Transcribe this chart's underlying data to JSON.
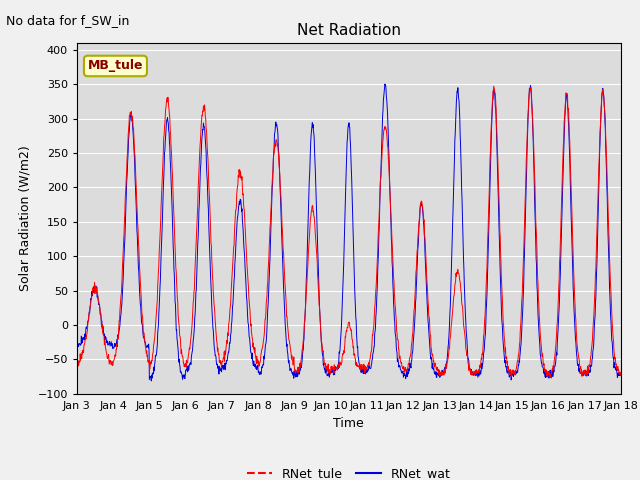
{
  "title": "Net Radiation",
  "xlabel": "Time",
  "ylabel": "Solar Radiation (W/m2)",
  "ylim": [
    -100,
    410
  ],
  "yticks": [
    -100,
    -50,
    0,
    50,
    100,
    150,
    200,
    250,
    300,
    350,
    400
  ],
  "annotation_text": "No data for f_SW_in",
  "legend_label1": "RNet_tule",
  "legend_label2": "RNet_wat",
  "line_color1": "#ff0000",
  "line_color2": "#0000dd",
  "bg_color": "#dcdcdc",
  "fig_bg_color": "#f0f0f0",
  "legend_box_color": "#ffffcc",
  "legend_box_edge": "#aaaa00",
  "legend_box_text": "MB_tule",
  "x_labels": [
    "Jan 3",
    "Jan 4",
    "Jan 5",
    "Jan 6",
    "Jan 7",
    "Jan 8",
    "Jan 9",
    "Jan 10",
    "Jan 11",
    "Jan 12",
    "Jan 13",
    "Jan 14",
    "Jan 15",
    "Jan 16",
    "Jan 17",
    "Jan 18"
  ],
  "n_days": 15,
  "pts_per_day": 96,
  "peaks_tule": [
    55,
    310,
    328,
    318,
    222,
    268,
    170,
    3,
    290,
    178,
    78,
    345,
    345,
    336,
    337
  ],
  "peaks_wat": [
    55,
    305,
    298,
    288,
    182,
    293,
    292,
    293,
    350,
    178,
    343,
    343,
    348,
    332,
    342
  ],
  "night_tule": [
    -58,
    -58,
    -68,
    -65,
    -58,
    -62,
    -68,
    -62,
    -68,
    -68,
    -72,
    -72,
    -72,
    -72,
    -72
  ],
  "night_wat": [
    -28,
    -32,
    -78,
    -68,
    -62,
    -72,
    -72,
    -68,
    -68,
    -72,
    -72,
    -72,
    -72,
    -72,
    -72
  ],
  "peak_width_tule": [
    0.06,
    0.06,
    0.06,
    0.06,
    0.06,
    0.06,
    0.04,
    0.02,
    0.06,
    0.04,
    0.04,
    0.04,
    0.04,
    0.04,
    0.04
  ],
  "peak_width_wat": [
    0.04,
    0.04,
    0.04,
    0.04,
    0.04,
    0.04,
    0.03,
    0.025,
    0.04,
    0.03,
    0.03,
    0.03,
    0.03,
    0.03,
    0.03
  ]
}
